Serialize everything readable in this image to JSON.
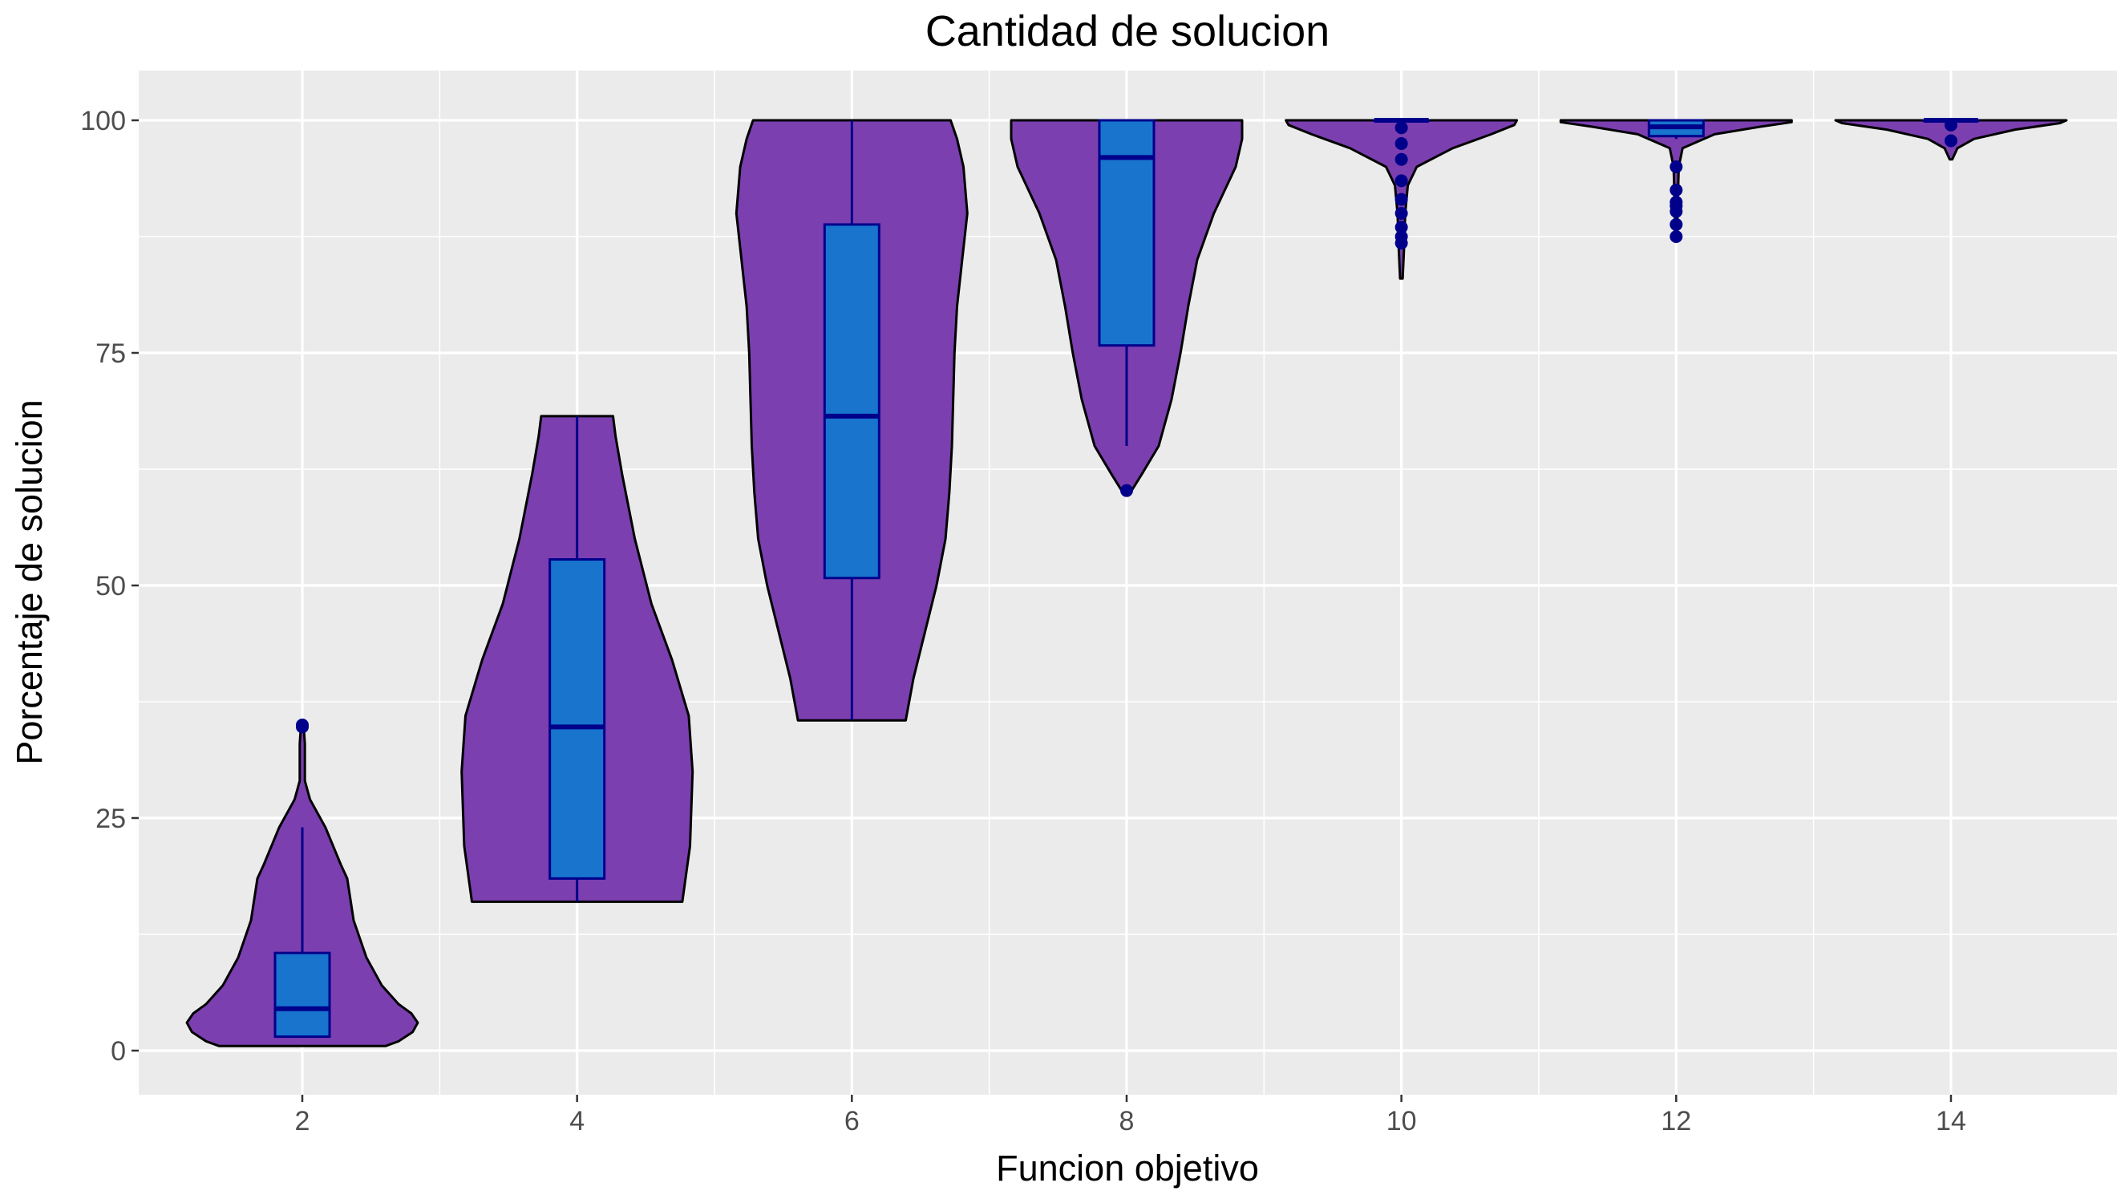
{
  "chart_data": {
    "type": "violin",
    "title": "Cantidad de solucion",
    "xlabel": "Funcion objetivo",
    "ylabel": "Porcentaje de solucion",
    "categories": [
      "2",
      "4",
      "6",
      "8",
      "10",
      "12",
      "14"
    ],
    "x_ticks": [
      "2",
      "4",
      "6",
      "8",
      "10",
      "12",
      "14"
    ],
    "y_ticks": [
      "0",
      "25",
      "50",
      "75",
      "100"
    ],
    "ylim": [
      -4,
      105
    ],
    "grid": true,
    "legend": "none",
    "colors": {
      "panel_background": "#ebebeb",
      "grid": "#ffffff",
      "violin_fill": "#7b3fb0",
      "violin_outline": "#000000",
      "box_fill": "#1874cd",
      "box_outline": "#00008b",
      "outlier": "#00008b"
    },
    "series": [
      {
        "x": 2,
        "box": {
          "min": 1.5,
          "q1": 1.5,
          "median": 4.5,
          "q3": 10.5,
          "max": 24
        },
        "outliers": [
          34.8,
          35.0
        ],
        "violin": [
          [
            0.5,
            0.65
          ],
          [
            1,
            0.75
          ],
          [
            2,
            0.86
          ],
          [
            3,
            0.9
          ],
          [
            4,
            0.85
          ],
          [
            5,
            0.75
          ],
          [
            7,
            0.62
          ],
          [
            10,
            0.5
          ],
          [
            14,
            0.4
          ],
          [
            18.5,
            0.35
          ],
          [
            20,
            0.3
          ],
          [
            24,
            0.18
          ],
          [
            27,
            0.06
          ],
          [
            29,
            0.02
          ],
          [
            33,
            0.02
          ],
          [
            35,
            0.01
          ]
        ]
      },
      {
        "x": 4,
        "box": {
          "min": 16,
          "q1": 18.5,
          "median": 34.8,
          "q3": 52.8,
          "max": 68.2
        },
        "outliers": [],
        "violin": [
          [
            16,
            0.82
          ],
          [
            22,
            0.88
          ],
          [
            30,
            0.9
          ],
          [
            36,
            0.87
          ],
          [
            42,
            0.74
          ],
          [
            48,
            0.58
          ],
          [
            55,
            0.45
          ],
          [
            62,
            0.35
          ],
          [
            66,
            0.3
          ],
          [
            68.2,
            0.28
          ]
        ]
      },
      {
        "x": 6,
        "box": {
          "min": 35.5,
          "q1": 50.8,
          "median": 68.2,
          "q3": 88.8,
          "max": 100
        },
        "outliers": [],
        "violin": [
          [
            35.5,
            0.42
          ],
          [
            40,
            0.48
          ],
          [
            45,
            0.57
          ],
          [
            50,
            0.66
          ],
          [
            55,
            0.73
          ],
          [
            60,
            0.76
          ],
          [
            65,
            0.78
          ],
          [
            70,
            0.79
          ],
          [
            75,
            0.8
          ],
          [
            80,
            0.82
          ],
          [
            85,
            0.86
          ],
          [
            90,
            0.9
          ],
          [
            95,
            0.87
          ],
          [
            98,
            0.82
          ],
          [
            100,
            0.77
          ]
        ]
      },
      {
        "x": 8,
        "box": {
          "min": 65,
          "q1": 75.8,
          "median": 96,
          "q3": 100,
          "max": 100
        },
        "outliers": [
          60.2
        ],
        "violin": [
          [
            60,
            0.03
          ],
          [
            62,
            0.12
          ],
          [
            65,
            0.25
          ],
          [
            70,
            0.35
          ],
          [
            75,
            0.42
          ],
          [
            80,
            0.48
          ],
          [
            85,
            0.55
          ],
          [
            90,
            0.68
          ],
          [
            95,
            0.85
          ],
          [
            98,
            0.9
          ],
          [
            100,
            0.9
          ]
        ]
      },
      {
        "x": 10,
        "box": {
          "min": 100,
          "q1": 100,
          "median": 100,
          "q3": 100,
          "max": 100
        },
        "outliers": [
          99.2,
          97.5,
          95.8,
          93.5,
          91.5,
          90,
          88.5,
          87.5,
          86.8
        ],
        "violin": [
          [
            83,
            0.01
          ],
          [
            86,
            0.02
          ],
          [
            90,
            0.03
          ],
          [
            93,
            0.05
          ],
          [
            95,
            0.12
          ],
          [
            97,
            0.4
          ],
          [
            98.5,
            0.7
          ],
          [
            99.5,
            0.88
          ],
          [
            100,
            0.9
          ]
        ]
      },
      {
        "x": 12,
        "box": {
          "min": 98,
          "q1": 98.3,
          "median": 99.3,
          "q3": 100,
          "max": 100
        },
        "outliers": [
          95,
          92.5,
          91.2,
          90.8,
          90.2,
          88.8,
          87.5
        ],
        "violin": [
          [
            87,
            0.01
          ],
          [
            90,
            0.01
          ],
          [
            95,
            0.02
          ],
          [
            97,
            0.05
          ],
          [
            98.5,
            0.3
          ],
          [
            99.3,
            0.65
          ],
          [
            99.8,
            0.9
          ],
          [
            100,
            0.9
          ]
        ]
      },
      {
        "x": 14,
        "box": {
          "min": 100,
          "q1": 100,
          "median": 100,
          "q3": 100,
          "max": 100
        },
        "outliers": [
          99.5,
          97.8
        ],
        "violin": [
          [
            95.8,
            0.01
          ],
          [
            97,
            0.05
          ],
          [
            98,
            0.18
          ],
          [
            99,
            0.5
          ],
          [
            99.7,
            0.85
          ],
          [
            100,
            0.9
          ]
        ]
      }
    ]
  }
}
